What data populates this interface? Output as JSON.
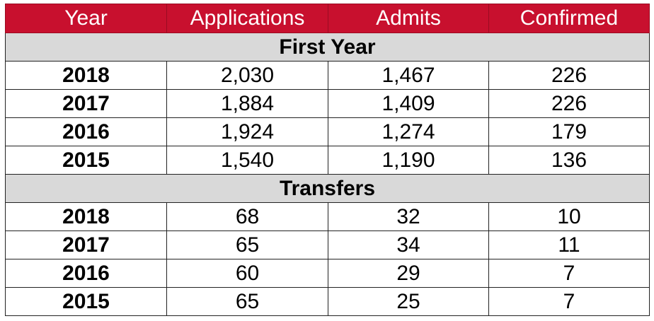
{
  "colors": {
    "header_bg": "#c8102e",
    "header_text": "#ffffff",
    "section_bg": "#d9d9d9"
  },
  "columns": [
    "Year",
    "Applications",
    "Admits",
    "Confirmed"
  ],
  "sections": [
    {
      "title": "First Year",
      "rows": [
        [
          "2018",
          "2,030",
          "1,467",
          "226"
        ],
        [
          "2017",
          "1,884",
          "1,409",
          "226"
        ],
        [
          "2016",
          "1,924",
          "1,274",
          "179"
        ],
        [
          "2015",
          "1,540",
          "1,190",
          "136"
        ]
      ]
    },
    {
      "title": "Transfers",
      "rows": [
        [
          "2018",
          "68",
          "32",
          "10"
        ],
        [
          "2017",
          "65",
          "34",
          "11"
        ],
        [
          "2016",
          "60",
          "29",
          "7"
        ],
        [
          "2015",
          "65",
          "25",
          "7"
        ]
      ]
    }
  ]
}
